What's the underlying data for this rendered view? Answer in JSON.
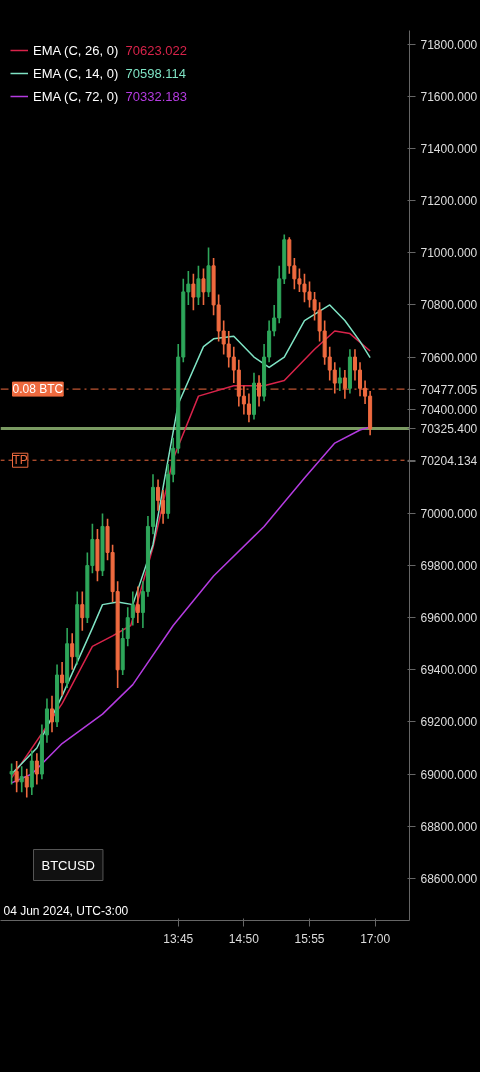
{
  "chart_data": {
    "type": "candlestick",
    "colors": [
      "#2ea65a",
      "#ee6a3f",
      "#2ea65a",
      "#ee6a3f",
      "#2ea65a",
      "#ee6a3f",
      "#2ea65a",
      "#2ea65a",
      "#ee6a3f",
      "#2ea65a",
      "#ee6a3f",
      "#2ea65a",
      "#ee6a3f",
      "#2ea65a",
      "#ee6a3f",
      "#2ea65a",
      "#2ea65a",
      "#ee6a3f",
      "#2ea65a",
      "#ee6a3f",
      "#ee6a3f",
      "#ee6a3f",
      "#2ea65a",
      "#2ea65a",
      "#2ea65a",
      "#ee6a3f",
      "#2ea65a",
      "#2ea65a",
      "#2ea65a",
      "#ee6a3f",
      "#ee6a3f",
      "#2ea65a",
      "#2ea65a",
      "#2ea65a",
      "#2ea65a",
      "#2ea65a",
      "#ee6a3f",
      "#2ea65a",
      "#ee6a3f",
      "#2ea65a",
      "#ee6a3f",
      "#ee6a3f",
      "#ee6a3f",
      "#ee6a3f",
      "#ee6a3f",
      "#ee6a3f",
      "#ee6a3f",
      "#ee6a3f",
      "#2ea65a",
      "#ee6a3f",
      "#2ea65a",
      "#2ea65a",
      "#2ea65a",
      "#2ea65a",
      "#2ea65a",
      "#ee6a3f",
      "#ee6a3f",
      "#ee6a3f",
      "#ee6a3f",
      "#ee6a3f",
      "#ee6a3f",
      "#ee6a3f",
      "#ee6a3f",
      "#ee6a3f",
      "#ee6a3f",
      "#2ea65a",
      "#ee6a3f",
      "#2ea65a",
      "#ee6a3f",
      "#ee6a3f",
      "#ee6a3f",
      "#ee6a3f"
    ],
    "x": [
      "2024-06-04T11:00",
      "2024-06-04T11:05",
      "2024-06-04T11:10",
      "2024-06-04T11:15",
      "2024-06-04T11:20",
      "2024-06-04T11:25",
      "2024-06-04T11:30",
      "2024-06-04T11:35",
      "2024-06-04T11:40",
      "2024-06-04T11:45",
      "2024-06-04T11:50",
      "2024-06-04T11:55",
      "2024-06-04T12:00",
      "2024-06-04T12:05",
      "2024-06-04T12:10",
      "2024-06-04T12:15",
      "2024-06-04T12:20",
      "2024-06-04T12:25",
      "2024-06-04T12:30",
      "2024-06-04T12:35",
      "2024-06-04T12:40",
      "2024-06-04T12:45",
      "2024-06-04T12:50",
      "2024-06-04T12:55",
      "2024-06-04T13:00",
      "2024-06-04T13:05",
      "2024-06-04T13:10",
      "2024-06-04T13:15",
      "2024-06-04T13:20",
      "2024-06-04T13:25",
      "2024-06-04T13:30",
      "2024-06-04T13:35",
      "2024-06-04T13:40",
      "2024-06-04T13:45",
      "2024-06-04T13:50",
      "2024-06-04T13:55",
      "2024-06-04T14:00",
      "2024-06-04T14:05",
      "2024-06-04T14:10",
      "2024-06-04T14:15",
      "2024-06-04T14:20",
      "2024-06-04T14:25",
      "2024-06-04T14:30",
      "2024-06-04T14:35",
      "2024-06-04T14:40",
      "2024-06-04T14:45",
      "2024-06-04T14:50",
      "2024-06-04T14:55",
      "2024-06-04T15:00",
      "2024-06-04T15:05",
      "2024-06-04T15:10",
      "2024-06-04T15:15",
      "2024-06-04T15:20",
      "2024-06-04T15:25",
      "2024-06-04T15:30",
      "2024-06-04T15:35",
      "2024-06-04T15:40",
      "2024-06-04T15:45",
      "2024-06-04T15:50",
      "2024-06-04T15:55",
      "2024-06-04T16:00",
      "2024-06-04T16:05",
      "2024-06-04T16:10",
      "2024-06-04T16:15",
      "2024-06-04T16:20",
      "2024-06-04T16:25",
      "2024-06-04T16:30",
      "2024-06-04T16:35",
      "2024-06-04T16:40",
      "2024-06-04T16:45",
      "2024-06-04T16:50",
      "2024-06-04T16:55"
    ],
    "ohlc": [
      [
        69000,
        69040,
        68960,
        69010
      ],
      [
        69010,
        69050,
        68930,
        68970
      ],
      [
        68970,
        69030,
        68930,
        68990
      ],
      [
        68990,
        69020,
        68910,
        68950
      ],
      [
        68950,
        69090,
        68920,
        69050
      ],
      [
        69050,
        69080,
        68960,
        69000
      ],
      [
        69000,
        69190,
        68980,
        69150
      ],
      [
        69150,
        69290,
        69120,
        69250
      ],
      [
        69250,
        69300,
        69160,
        69200
      ],
      [
        69200,
        69420,
        69180,
        69380
      ],
      [
        69380,
        69430,
        69300,
        69350
      ],
      [
        69350,
        69560,
        69330,
        69500
      ],
      [
        69500,
        69540,
        69400,
        69450
      ],
      [
        69450,
        69700,
        69420,
        69650
      ],
      [
        69650,
        69700,
        69550,
        69600
      ],
      [
        69600,
        69850,
        69580,
        69800
      ],
      [
        69800,
        69960,
        69770,
        69900
      ],
      [
        69900,
        69940,
        69740,
        69780
      ],
      [
        69780,
        70000,
        69760,
        69950
      ],
      [
        69950,
        69980,
        69820,
        69850
      ],
      [
        69850,
        69880,
        69660,
        69700
      ],
      [
        69700,
        69740,
        69330,
        69400
      ],
      [
        69400,
        69560,
        69380,
        69520
      ],
      [
        69520,
        69640,
        69490,
        69600
      ],
      [
        69600,
        69700,
        69570,
        69650
      ],
      [
        69650,
        69720,
        69580,
        69620
      ],
      [
        69620,
        69740,
        69560,
        69700
      ],
      [
        69700,
        69990,
        69680,
        69950
      ],
      [
        69950,
        70150,
        69920,
        70100
      ],
      [
        70100,
        70130,
        70010,
        70050
      ],
      [
        70050,
        70090,
        69960,
        70000
      ],
      [
        70000,
        70190,
        69980,
        70150
      ],
      [
        70150,
        70290,
        70120,
        70250
      ],
      [
        70250,
        70650,
        70230,
        70600
      ],
      [
        70600,
        70900,
        70580,
        70850
      ],
      [
        70850,
        70930,
        70800,
        70880
      ],
      [
        70880,
        70920,
        70780,
        70830
      ],
      [
        70830,
        70950,
        70800,
        70900
      ],
      [
        70900,
        70940,
        70800,
        70850
      ],
      [
        70850,
        71020,
        70830,
        70950
      ],
      [
        70950,
        70980,
        70760,
        70800
      ],
      [
        70800,
        70840,
        70660,
        70700
      ],
      [
        70700,
        70740,
        70610,
        70650
      ],
      [
        70650,
        70700,
        70560,
        70600
      ],
      [
        70600,
        70640,
        70500,
        70550
      ],
      [
        70550,
        70590,
        70410,
        70450
      ],
      [
        70450,
        70490,
        70380,
        70420
      ],
      [
        70420,
        70460,
        70350,
        70380
      ],
      [
        70380,
        70540,
        70360,
        70500
      ],
      [
        70500,
        70530,
        70410,
        70450
      ],
      [
        70450,
        70650,
        70430,
        70600
      ],
      [
        70600,
        70740,
        70580,
        70700
      ],
      [
        70700,
        70800,
        70680,
        70750
      ],
      [
        70750,
        70950,
        70730,
        70900
      ],
      [
        70900,
        71070,
        70880,
        71050
      ],
      [
        71050,
        71060,
        70920,
        70950
      ],
      [
        70950,
        70980,
        70860,
        70900
      ],
      [
        70900,
        70940,
        70850,
        70880
      ],
      [
        70880,
        70920,
        70810,
        70850
      ],
      [
        70850,
        70890,
        70790,
        70820
      ],
      [
        70820,
        70850,
        70740,
        70780
      ],
      [
        70780,
        70810,
        70660,
        70700
      ],
      [
        70700,
        70740,
        70570,
        70600
      ],
      [
        70600,
        70640,
        70510,
        70550
      ],
      [
        70550,
        70580,
        70460,
        70500
      ],
      [
        70500,
        70560,
        70470,
        70520
      ],
      [
        70520,
        70550,
        70440,
        70480
      ],
      [
        70480,
        70630,
        70460,
        70600
      ],
      [
        70600,
        70630,
        70510,
        70550
      ],
      [
        70550,
        70580,
        70450,
        70480
      ],
      [
        70480,
        70510,
        70420,
        70450
      ],
      [
        70450,
        70470,
        70300,
        70325
      ]
    ],
    "series": [
      {
        "type": "line",
        "name": "EMA (C, 26, 0)",
        "color": "#d8234a",
        "x": [
          "2024-06-04T11:00",
          "2024-06-04T11:50",
          "2024-06-04T12:20",
          "2024-06-04T12:40",
          "2024-06-04T12:58",
          "2024-06-04T13:20",
          "2024-06-04T13:40",
          "2024-06-04T14:05",
          "2024-06-04T14:40",
          "2024-06-04T15:10",
          "2024-06-04T15:30",
          "2024-06-04T16:00",
          "2024-06-04T16:20",
          "2024-06-04T16:35",
          "2024-06-04T16:55"
        ],
        "values": [
          68985,
          69270,
          69490,
          69530,
          69570,
          69870,
          70210,
          70450,
          70490,
          70490,
          70510,
          70630,
          70700,
          70690,
          70623
        ]
      },
      {
        "type": "line",
        "name": "EMA (C, 14, 0)",
        "color": "#7fe3c4",
        "x": [
          "2024-06-04T11:00",
          "2024-06-04T11:25",
          "2024-06-04T11:50",
          "2024-06-04T12:20",
          "2024-06-04T12:30",
          "2024-06-04T12:45",
          "2024-06-04T13:00",
          "2024-06-04T13:20",
          "2024-06-04T13:30",
          "2024-06-04T13:45",
          "2024-06-04T14:10",
          "2024-06-04T14:20",
          "2024-06-04T14:40",
          "2024-06-04T15:00",
          "2024-06-04T15:15",
          "2024-06-04T15:30",
          "2024-06-04T15:50",
          "2024-06-04T16:15",
          "2024-06-04T16:30",
          "2024-06-04T16:45",
          "2024-06-04T16:55"
        ],
        "values": [
          69000,
          69100,
          69300,
          69560,
          69650,
          69660,
          69650,
          69880,
          70100,
          70420,
          70640,
          70670,
          70680,
          70600,
          70560,
          70600,
          70740,
          70800,
          70740,
          70660,
          70598
        ]
      },
      {
        "type": "line",
        "name": "EMA (C, 72, 0)",
        "color": "#b43be0",
        "x": [
          "2024-06-04T11:00",
          "2024-06-04T11:20",
          "2024-06-04T11:50",
          "2024-06-04T12:30",
          "2024-06-04T13:00",
          "2024-06-04T13:40",
          "2024-06-04T14:20",
          "2024-06-04T15:10",
          "2024-06-04T15:50",
          "2024-06-04T16:20",
          "2024-06-04T16:45",
          "2024-06-04T16:55"
        ],
        "values": [
          68966,
          69000,
          69117,
          69230,
          69343,
          69570,
          69760,
          69950,
          70136,
          70270,
          70320,
          70332
        ]
      }
    ],
    "xlim": [
      "2024-06-04T10:49",
      "2024-06-04T17:34"
    ],
    "xticks": [
      {
        "value": "2024-06-04T13:45",
        "label": "13:45"
      },
      {
        "value": "2024-06-04T14:50",
        "label": "14:50"
      },
      {
        "value": "2024-06-04T15:55",
        "label": "15:55"
      },
      {
        "value": "2024-06-04T17:00",
        "label": "17:00"
      }
    ],
    "ylim": [
      68438,
      71853
    ],
    "yticks": [
      {
        "value": 68600,
        "label": "68600.000"
      },
      {
        "value": 68800,
        "label": "68800.000"
      },
      {
        "value": 69000,
        "label": "69000.000"
      },
      {
        "value": 69200,
        "label": "69200.000"
      },
      {
        "value": 69400,
        "label": "69400.000"
      },
      {
        "value": 69600,
        "label": "69600.000"
      },
      {
        "value": 69800,
        "label": "69800.000"
      },
      {
        "value": 70000,
        "label": "70000.000"
      },
      {
        "value": 70200,
        "label": null
      },
      {
        "value": 70400,
        "label": "70400.000"
      },
      {
        "value": 70600,
        "label": "70600.000"
      },
      {
        "value": 70800,
        "label": "70800.000"
      },
      {
        "value": 71000,
        "label": "71000.000"
      },
      {
        "value": 71200,
        "label": "71200.000"
      },
      {
        "value": 71400,
        "label": "71400.000"
      },
      {
        "value": 71600,
        "label": "71600.000"
      },
      {
        "value": 71800,
        "label": "71800.000"
      }
    ],
    "ref_lines": [
      {
        "axis": "y",
        "value": 70477.005,
        "label": "70477.005",
        "color": "#ee6a3f",
        "line_style": "dashdot"
      },
      {
        "axis": "y",
        "value": 70325.4,
        "label": "70325.400",
        "color": "#7a9a62",
        "line_style": "solid"
      },
      {
        "axis": "y",
        "value": 70204.134,
        "label": "70204.134",
        "color": "#ee6a3f",
        "line_style": "dashed"
      }
    ],
    "annotations": [
      "70623.022",
      "70598.114",
      "70332.183",
      "04 Jun 2024, UTC-3:00",
      "BTCUSD",
      {
        "text": "0.08 BTC",
        "y": 70477.005
      },
      {
        "text": "TP",
        "y": 70204.134
      }
    ],
    "legend": "top left",
    "grid": false
  }
}
